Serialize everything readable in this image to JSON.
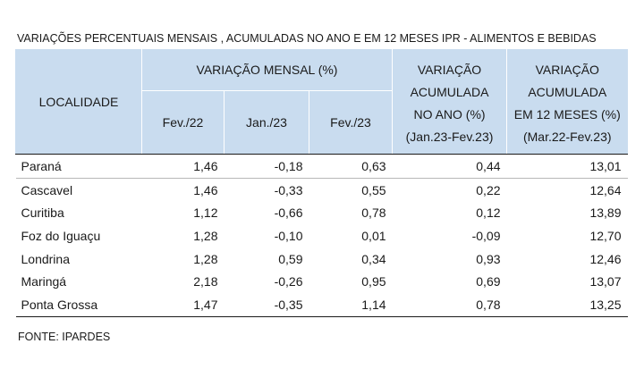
{
  "title": "VARIAÇÕES PERCENTUAIS MENSAIS , ACUMULADAS NO ANO E EM 12 MESES IPR - ALIMENTOS E BEBIDAS",
  "header": {
    "localidade": "LOCALIDADE",
    "variacao_mensal": "VARIAÇÃO MENSAL (%)",
    "months": [
      "Fev./22",
      "Jan./23",
      "Fev./23"
    ],
    "acumulada_ano": {
      "line1": "VARIAÇÃO",
      "line2": "ACUMULADA",
      "line3": "NO ANO (%)",
      "line4": "(Jan.23-Fev.23)"
    },
    "acumulada_12m": {
      "line1": "VARIAÇÃO",
      "line2": "ACUMULADA",
      "line3": "EM 12 MESES (%)",
      "line4": "(Mar.22-Fev.23)"
    }
  },
  "rows": [
    {
      "name": "Paraná",
      "fev22": "1,46",
      "jan23": "-0,18",
      "fev23": "0,63",
      "acum_ano": "0,44",
      "acum_12m": "13,01"
    },
    {
      "name": "Cascavel",
      "fev22": "1,46",
      "jan23": "-0,33",
      "fev23": "0,55",
      "acum_ano": "0,22",
      "acum_12m": "12,64"
    },
    {
      "name": "Curitiba",
      "fev22": "1,12",
      "jan23": "-0,66",
      "fev23": "0,78",
      "acum_ano": "0,12",
      "acum_12m": "13,89"
    },
    {
      "name": "Foz do Iguaçu",
      "fev22": "1,28",
      "jan23": "-0,10",
      "fev23": "0,01",
      "acum_ano": "-0,09",
      "acum_12m": "12,70"
    },
    {
      "name": "Londrina",
      "fev22": "1,28",
      "jan23": "0,59",
      "fev23": "0,34",
      "acum_ano": "0,93",
      "acum_12m": "12,46"
    },
    {
      "name": "Maringá",
      "fev22": "2,18",
      "jan23": "-0,26",
      "fev23": "0,95",
      "acum_ano": "0,69",
      "acum_12m": "13,07"
    },
    {
      "name": "Ponta Grossa",
      "fev22": "1,47",
      "jan23": "-0,35",
      "fev23": "1,14",
      "acum_ano": "0,78",
      "acum_12m": "13,25"
    }
  ],
  "source": "FONTE: IPARDES",
  "colors": {
    "header_bg": "#c9dcef",
    "text": "#1a1a1a"
  }
}
